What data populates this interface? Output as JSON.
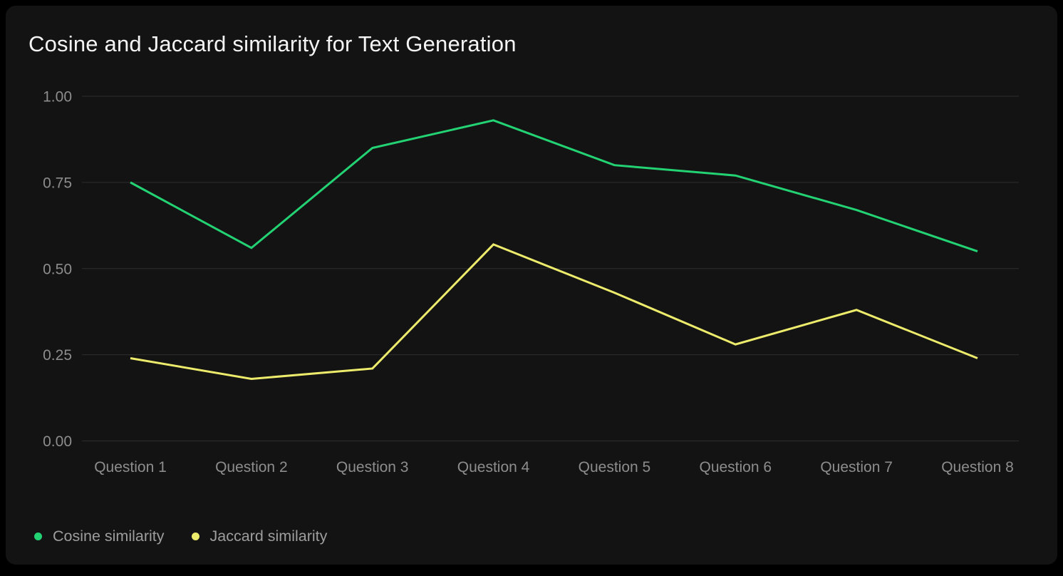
{
  "chart_data": {
    "type": "line",
    "title": "Cosine and Jaccard similarity for Text Generation",
    "categories": [
      "Question 1",
      "Question 2",
      "Question 3",
      "Question 4",
      "Question 5",
      "Question 6",
      "Question 7",
      "Question 8"
    ],
    "series": [
      {
        "name": "Cosine similarity",
        "color": "#23d273",
        "values": [
          0.75,
          0.56,
          0.85,
          0.93,
          0.8,
          0.77,
          0.67,
          0.55
        ]
      },
      {
        "name": "Jaccard similarity",
        "color": "#edeb6b",
        "values": [
          0.24,
          0.18,
          0.21,
          0.57,
          0.43,
          0.28,
          0.38,
          0.24
        ]
      }
    ],
    "ylim": [
      0.0,
      1.0
    ],
    "yticks": [
      {
        "value": 0.0,
        "label": "0.00"
      },
      {
        "value": 0.25,
        "label": "0.25"
      },
      {
        "value": 0.5,
        "label": "0.50"
      },
      {
        "value": 0.75,
        "label": "0.75"
      },
      {
        "value": 1.0,
        "label": "1.00"
      }
    ],
    "grid": "horizontal",
    "legend_position": "bottom-left",
    "xlabel": "",
    "ylabel": ""
  },
  "colors": {
    "background": "#000000",
    "card": "#131313",
    "gridline": "#2e2e2e",
    "title_text": "#f4f4f4",
    "tick_text": "#8d8d8d",
    "legend_text": "#9d9d9d"
  }
}
